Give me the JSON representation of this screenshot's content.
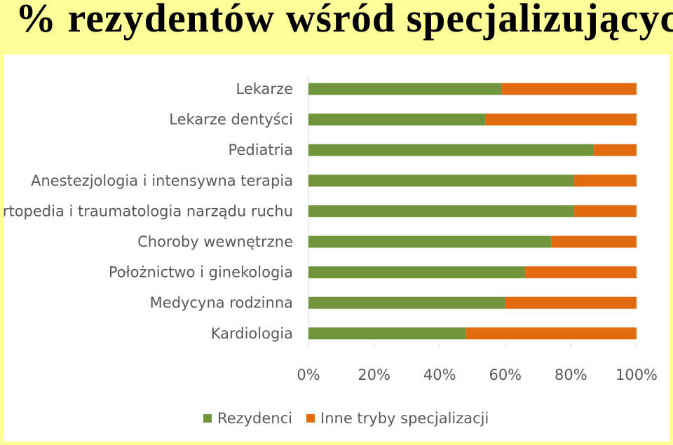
{
  "slide": {
    "title": "% rezydentów wśród specjalizujących"
  },
  "colors": {
    "background": "#ffff99",
    "series_rezydenci": "#70953a",
    "series_inne": "#e26b10",
    "axis": "#d9d9d9",
    "text": "#595959"
  },
  "chart_data": {
    "type": "bar",
    "orientation": "horizontal",
    "stacked": "100%",
    "categories": [
      "Lekarze",
      "Lekarze dentyści",
      "Pediatria",
      "Anestezjologia i intensywna terapia",
      "Ortopedia i traumatologia narządu ruchu",
      "Choroby wewnętrzne",
      "Położnictwo i ginekologia",
      "Medycyna rodzinna",
      "Kardiologia"
    ],
    "series": [
      {
        "name": "Rezydenci",
        "values": [
          59,
          54,
          87,
          81,
          81,
          74,
          66,
          60,
          48
        ]
      },
      {
        "name": "Inne tryby specjalizacji",
        "values": [
          41,
          46,
          13,
          19,
          19,
          26,
          34,
          40,
          52
        ]
      }
    ],
    "xticks": [
      "0%",
      "20%",
      "40%",
      "60%",
      "80%",
      "100%"
    ],
    "xlim": [
      0,
      100
    ],
    "legend_position": "bottom",
    "grid": false
  }
}
